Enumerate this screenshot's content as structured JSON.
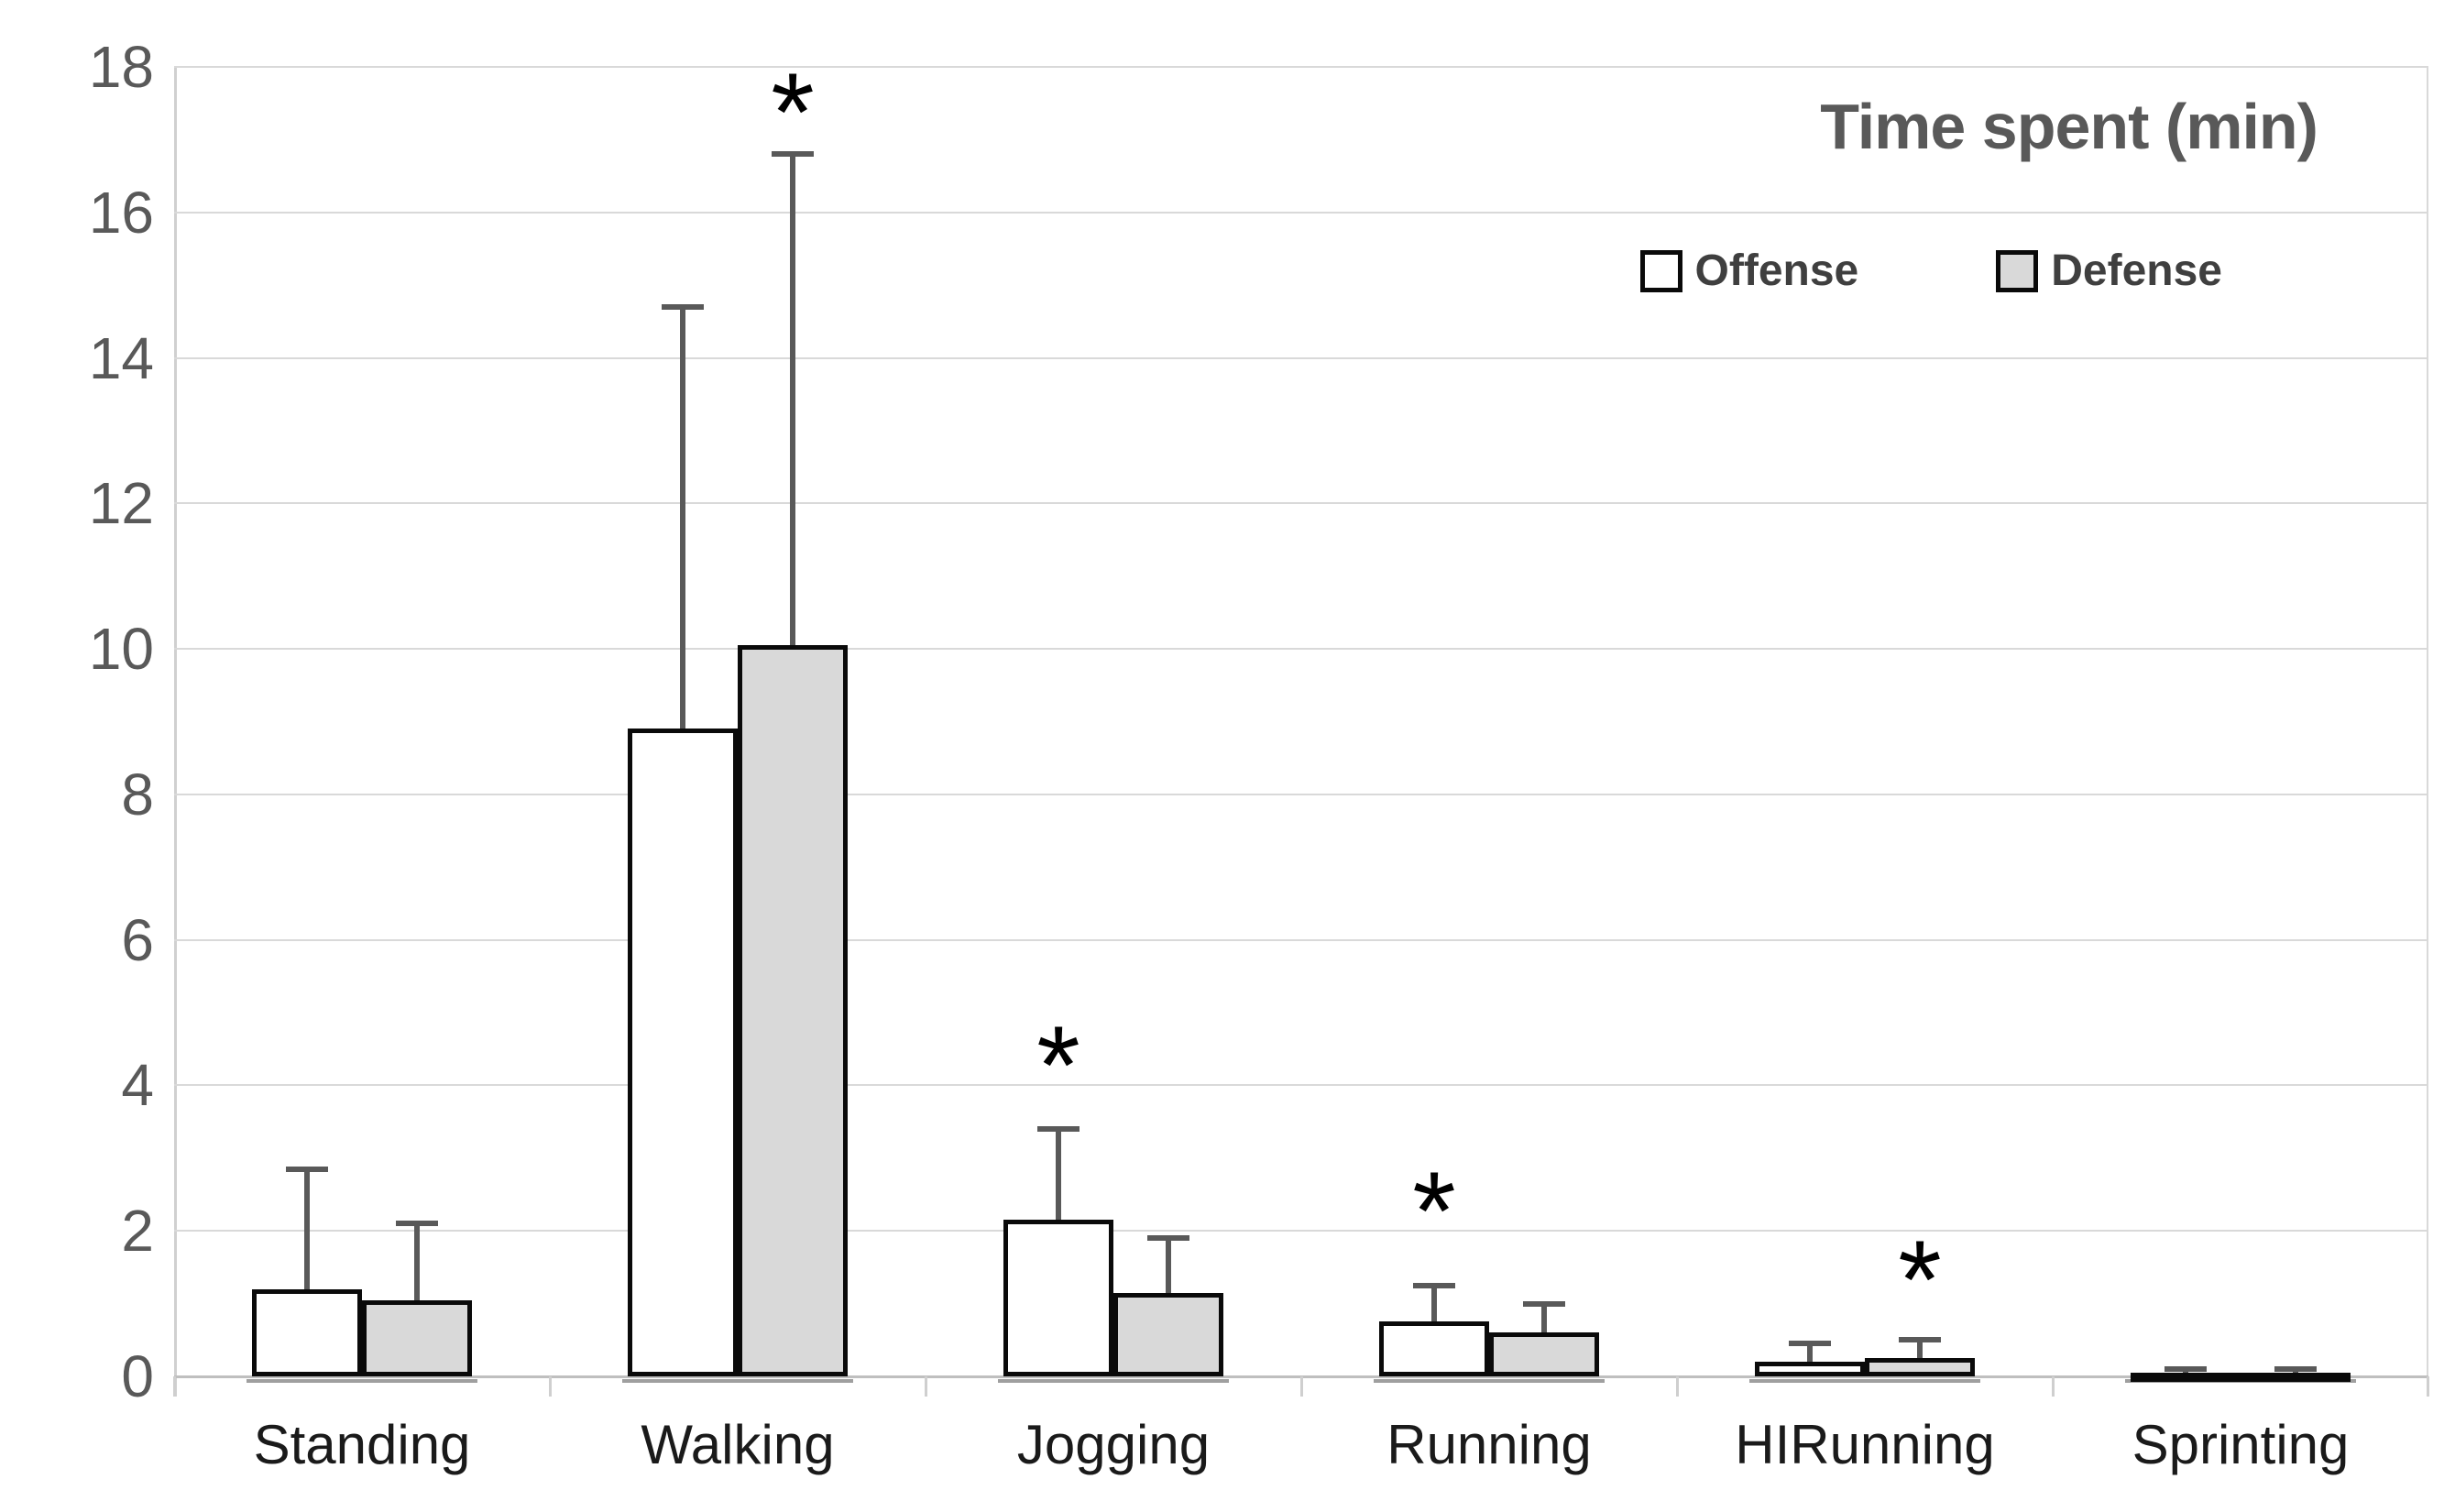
{
  "chart_data": {
    "type": "bar",
    "title": "Time spent (min)",
    "categories": [
      "Standing",
      "Walking",
      "Jogging",
      "Running",
      "HIRunning",
      "Sprinting"
    ],
    "series": [
      {
        "name": "Offense",
        "fill": "#ffffff",
        "values": [
          1.2,
          8.9,
          2.15,
          0.75,
          0.2,
          0.05
        ],
        "error_up": [
          1.65,
          5.8,
          1.25,
          0.5,
          0.25,
          0.05
        ]
      },
      {
        "name": "Defense",
        "fill": "#d9d9d9",
        "values": [
          1.05,
          10.05,
          1.15,
          0.6,
          0.25,
          0.05
        ],
        "error_up": [
          1.05,
          6.75,
          0.75,
          0.4,
          0.25,
          0.05
        ]
      }
    ],
    "significance_marks": [
      {
        "category": "Walking",
        "series": "Defense",
        "at_value": 17.6,
        "symbol": "*"
      },
      {
        "category": "Jogging",
        "series": "Offense",
        "at_value": 4.5,
        "symbol": "*"
      },
      {
        "category": "Running",
        "series": "Offense",
        "at_value": 2.5,
        "symbol": "*"
      },
      {
        "category": "HIRunning",
        "series": "Defense",
        "at_value": 1.55,
        "symbol": "*"
      }
    ],
    "ylim": [
      0,
      18
    ],
    "ytick_step": 2,
    "yticks": [
      0,
      2,
      4,
      6,
      8,
      10,
      12,
      14,
      16,
      18
    ],
    "grid": true,
    "legend_position": "top-right",
    "colors": {
      "offense_fill": "#ffffff",
      "defense_fill": "#d9d9d9",
      "bar_border": "#0a0a0a",
      "error_bar": "#595959",
      "gridline": "#d9d9d9",
      "axis_line": "#bfbfbf",
      "y_label": "#595959",
      "x_label": "#1a1a1a",
      "title": "#595959",
      "legend_text": "#3f3f3f"
    }
  }
}
